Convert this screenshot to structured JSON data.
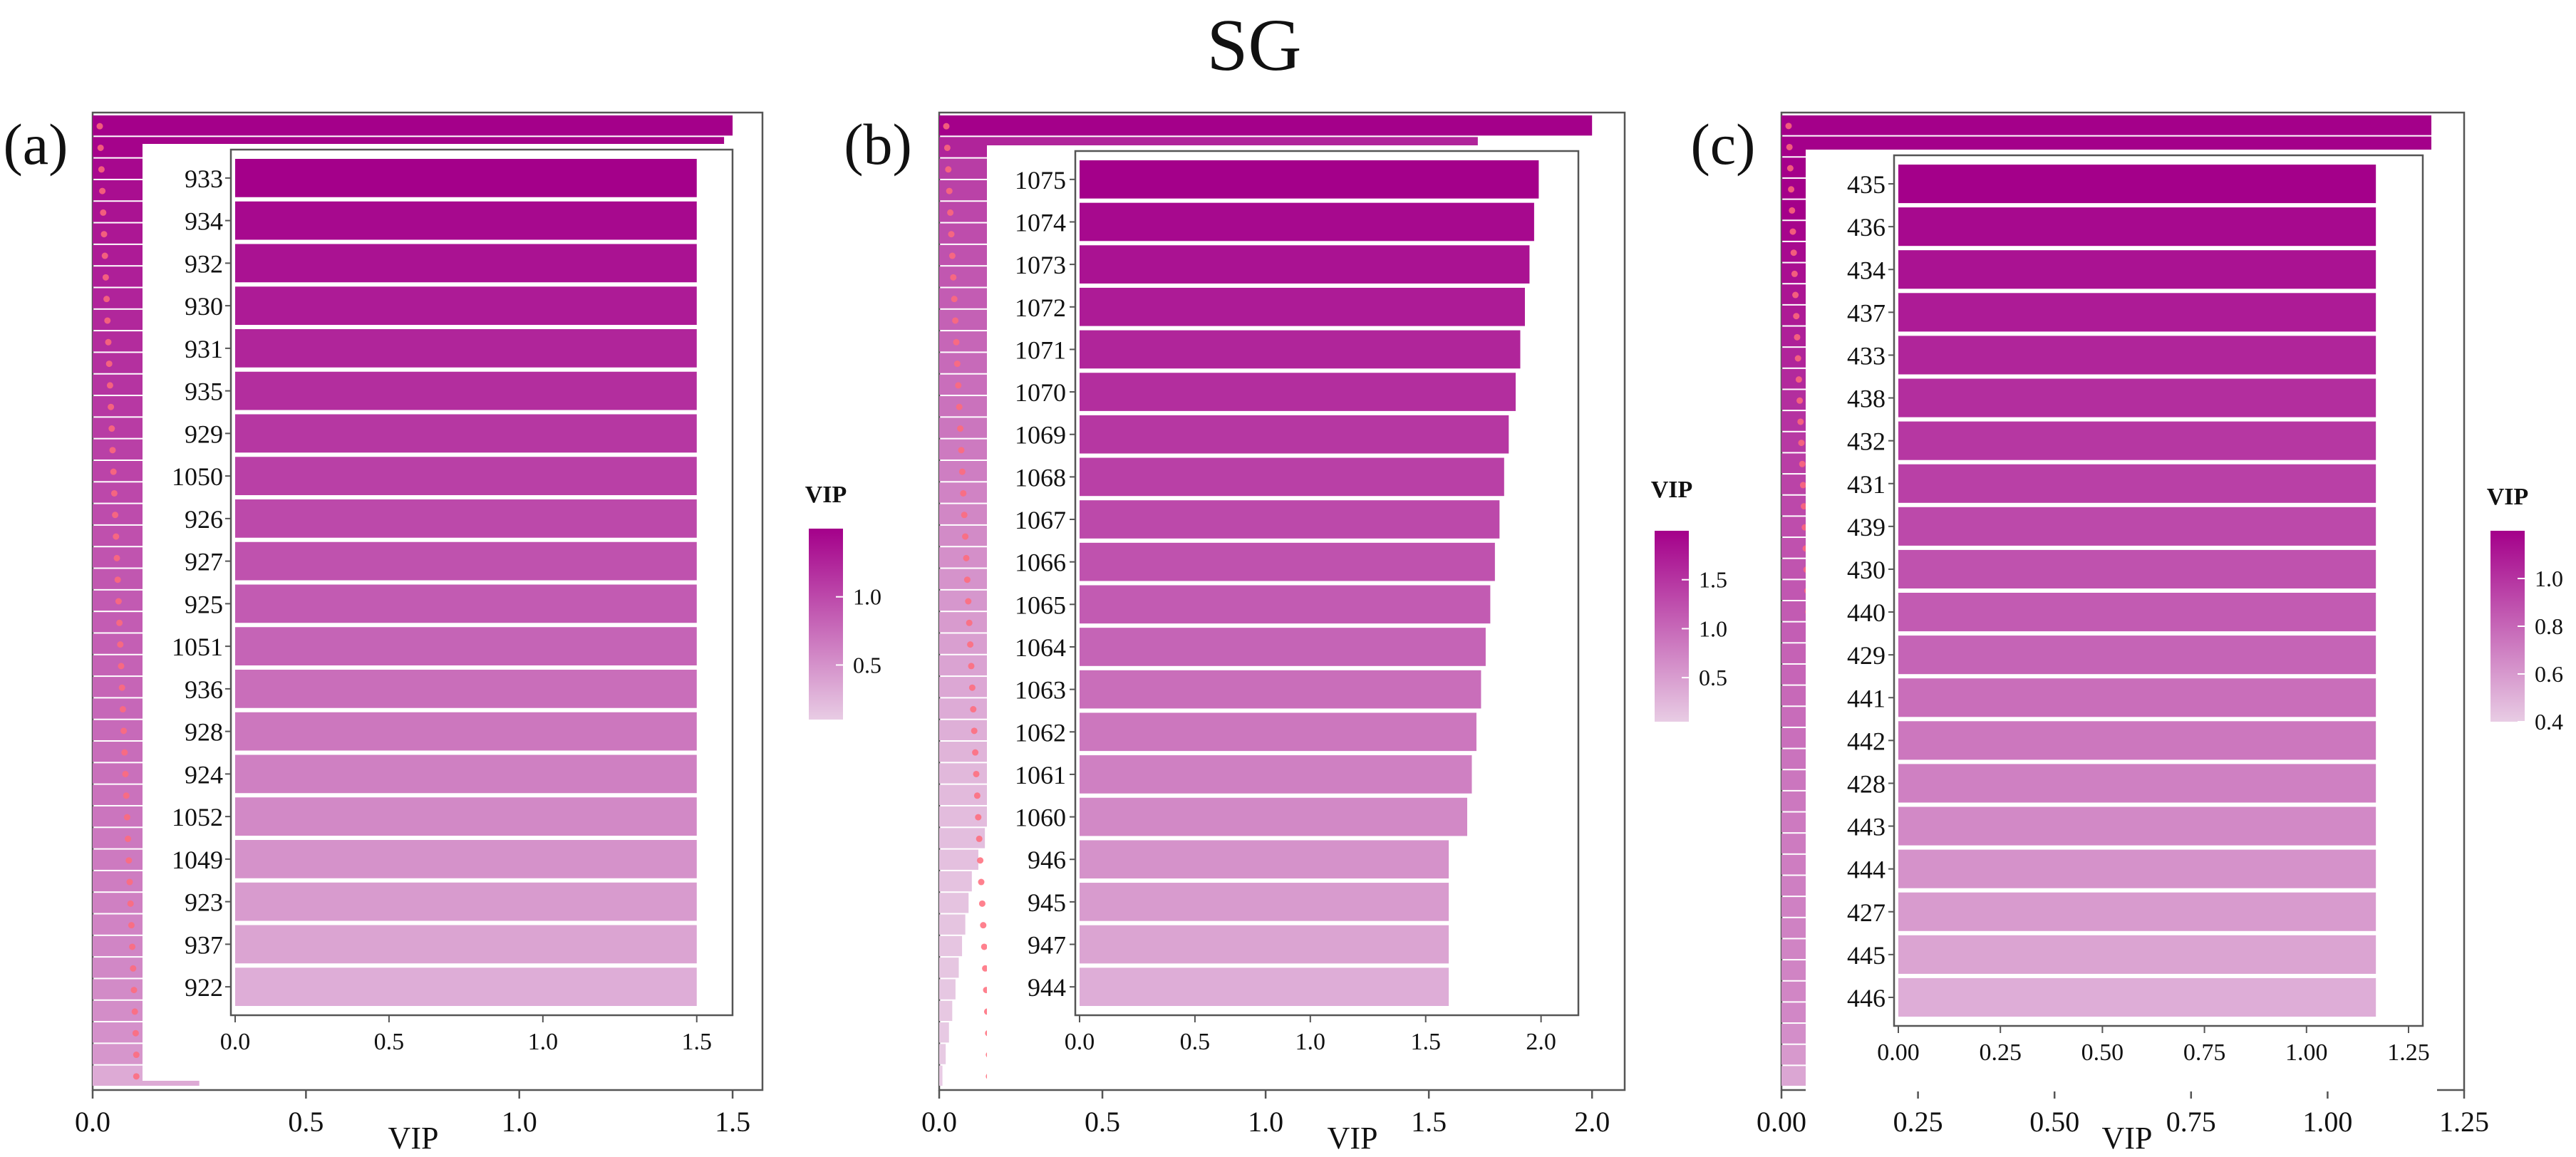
{
  "figure_title": "SG",
  "colors": {
    "vip_high": "#a4008a",
    "vip_low": "#e8cce4",
    "frame": "#555555",
    "points": "#ff6b7a"
  },
  "chart_data": [
    {
      "panel_label": "(a)",
      "type": "bar",
      "orientation": "horizontal",
      "xlabel": "VIP",
      "outer_xlim": [
        0,
        1.57
      ],
      "outer_ticks": [
        "0.0",
        "0.5",
        "1.0",
        "1.5"
      ],
      "outer_tick_values": [
        0,
        0.5,
        1.0,
        1.5
      ],
      "outer_bar_count": 45,
      "outer_bars": [
        1.5,
        1.48,
        1.44,
        1.4,
        1.36,
        1.33,
        1.3,
        1.27,
        1.24,
        1.21,
        1.18,
        1.15,
        1.12,
        1.09,
        1.06,
        1.03,
        1.0,
        0.97,
        0.94,
        0.91,
        0.88,
        0.86,
        0.84,
        0.82,
        0.8,
        0.78,
        0.76,
        0.74,
        0.72,
        0.7,
        0.68,
        0.66,
        0.64,
        0.62,
        0.6,
        0.58,
        0.56,
        0.54,
        0.52,
        0.5,
        0.48,
        0.46,
        0.44,
        0.4,
        0.25
      ],
      "inset_xlim": [
        0,
        1.57
      ],
      "inset_ticks": [
        "0.0",
        "0.5",
        "1.0",
        "1.5"
      ],
      "inset_tick_values": [
        0,
        0.5,
        1.0,
        1.5
      ],
      "categories": [
        "933",
        "934",
        "932",
        "930",
        "931",
        "935",
        "929",
        "1050",
        "926",
        "927",
        "925",
        "1051",
        "936",
        "928",
        "924",
        "1052",
        "1049",
        "923",
        "937",
        "922"
      ],
      "values": [
        1.5,
        1.5,
        1.5,
        1.5,
        1.5,
        1.5,
        1.5,
        1.5,
        1.5,
        1.5,
        1.5,
        1.5,
        1.5,
        1.5,
        1.5,
        1.5,
        1.5,
        1.5,
        1.5,
        1.5
      ],
      "colorbar_title": "VIP",
      "colorbar_ticks": [
        "1.0",
        "0.5"
      ],
      "colorbar_tick_values": [
        1.0,
        0.5
      ],
      "colorbar_range": [
        0.1,
        1.5
      ]
    },
    {
      "panel_label": "(b)",
      "type": "bar",
      "orientation": "horizontal",
      "xlabel": "VIP",
      "outer_xlim": [
        0,
        2.1
      ],
      "outer_ticks": [
        "0.0",
        "0.5",
        "1.0",
        "1.5",
        "2.0"
      ],
      "outer_tick_values": [
        0,
        0.5,
        1.0,
        1.5,
        2.0
      ],
      "outer_bar_count": 45,
      "outer_bars": [
        2.0,
        1.65,
        1.4,
        1.35,
        1.3,
        1.25,
        1.2,
        1.15,
        1.1,
        1.05,
        1.0,
        0.96,
        0.92,
        0.88,
        0.84,
        0.8,
        0.76,
        0.72,
        0.68,
        0.64,
        0.6,
        0.56,
        0.52,
        0.48,
        0.44,
        0.4,
        0.36,
        0.32,
        0.28,
        0.24,
        0.2,
        0.18,
        0.16,
        0.14,
        0.12,
        0.1,
        0.09,
        0.08,
        0.07,
        0.06,
        0.05,
        0.04,
        0.03,
        0.02,
        0.01
      ],
      "inset_xlim": [
        0,
        2.1
      ],
      "inset_ticks": [
        "0.0",
        "0.5",
        "1.0",
        "1.5",
        "2.0"
      ],
      "inset_tick_values": [
        0,
        0.5,
        1.0,
        1.5,
        2.0
      ],
      "categories": [
        "1075",
        "1074",
        "1073",
        "1072",
        "1071",
        "1070",
        "1069",
        "1068",
        "1067",
        "1066",
        "1065",
        "1064",
        "1063",
        "1062",
        "1061",
        "1060",
        "946",
        "945",
        "947",
        "944"
      ],
      "values": [
        1.99,
        1.97,
        1.95,
        1.93,
        1.91,
        1.89,
        1.86,
        1.84,
        1.82,
        1.8,
        1.78,
        1.76,
        1.74,
        1.72,
        1.7,
        1.68,
        1.6,
        1.6,
        1.6,
        1.6
      ],
      "colorbar_title": "VIP",
      "colorbar_ticks": [
        "1.5",
        "1.0",
        "0.5"
      ],
      "colorbar_tick_values": [
        1.5,
        1.0,
        0.5
      ],
      "colorbar_range": [
        0.05,
        2.0
      ]
    },
    {
      "panel_label": "(c)",
      "type": "bar",
      "orientation": "horizontal",
      "xlabel": "VIP",
      "outer_xlim": [
        0,
        1.25
      ],
      "outer_ticks": [
        "0.00",
        "0.25",
        "0.50",
        "0.75",
        "1.00",
        "1.25"
      ],
      "outer_tick_values": [
        0,
        0.25,
        0.5,
        0.75,
        1.0,
        1.25
      ],
      "outer_bar_count": 46,
      "outer_bars": [
        1.19,
        1.19,
        1.19,
        1.19,
        1.19,
        1.16,
        1.13,
        1.1,
        1.07,
        1.04,
        1.01,
        0.98,
        0.95,
        0.92,
        0.89,
        0.86,
        0.83,
        0.8,
        0.77,
        0.74,
        0.72,
        0.7,
        0.68,
        0.66,
        0.64,
        0.62,
        0.6,
        0.58,
        0.56,
        0.54,
        0.52,
        0.5,
        0.49,
        0.48,
        0.47,
        0.46,
        0.45,
        0.44,
        0.43,
        0.42,
        0.42,
        0.41,
        0.4,
        0.36,
        0.3,
        0.22
      ],
      "inset_xlim": [
        0,
        1.25
      ],
      "inset_ticks": [
        "0.00",
        "0.25",
        "0.50",
        "0.75",
        "1.00",
        "1.25"
      ],
      "inset_tick_values": [
        0,
        0.25,
        0.5,
        0.75,
        1.0,
        1.25
      ],
      "categories": [
        "435",
        "436",
        "434",
        "437",
        "433",
        "438",
        "432",
        "431",
        "439",
        "430",
        "440",
        "429",
        "441",
        "442",
        "428",
        "443",
        "444",
        "427",
        "445",
        "446"
      ],
      "values": [
        1.17,
        1.17,
        1.17,
        1.17,
        1.17,
        1.17,
        1.17,
        1.17,
        1.17,
        1.17,
        1.17,
        1.17,
        1.17,
        1.17,
        1.17,
        1.17,
        1.17,
        1.17,
        1.17,
        1.17
      ],
      "colorbar_title": "VIP",
      "colorbar_ticks": [
        "1.0",
        "0.8",
        "0.6",
        "0.4"
      ],
      "colorbar_tick_values": [
        1.0,
        0.8,
        0.6,
        0.4
      ],
      "colorbar_range": [
        0.4,
        1.2
      ]
    }
  ]
}
